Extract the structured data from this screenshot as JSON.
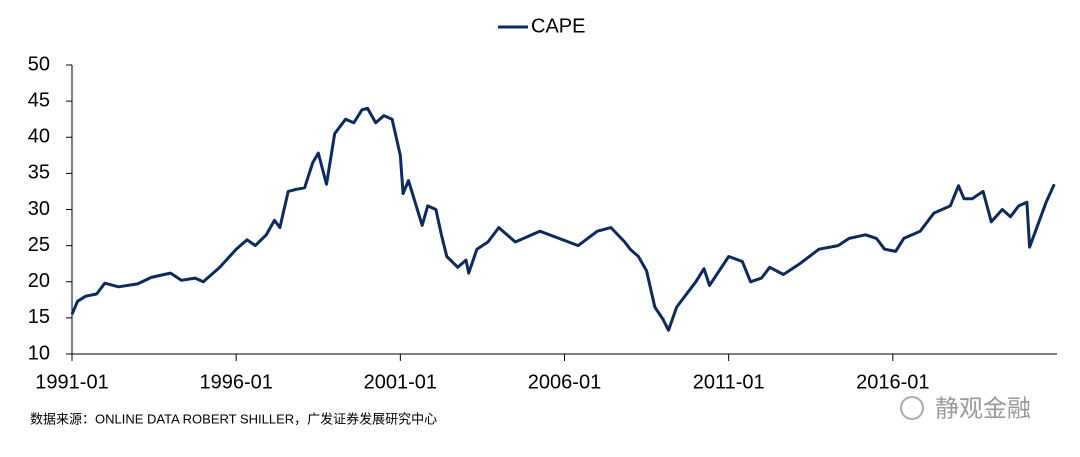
{
  "chart_data": {
    "type": "line",
    "series": [
      {
        "name": "CAPE",
        "color": "#0d2a5e",
        "x": [
          "1991-01",
          "1991-03",
          "1991-06",
          "1991-10",
          "1992-01",
          "1992-06",
          "1993-01",
          "1993-06",
          "1994-01",
          "1994-05",
          "1994-10",
          "1995-01",
          "1995-07",
          "1996-01",
          "1996-05",
          "1996-08",
          "1996-12",
          "1997-03",
          "1997-05",
          "1997-08",
          "1997-11",
          "1998-02",
          "1998-05",
          "1998-07",
          "1998-10",
          "1999-01",
          "1999-05",
          "1999-08",
          "1999-11",
          "2000-01",
          "2000-04",
          "2000-07",
          "2000-10",
          "2001-01",
          "2001-02",
          "2001-04",
          "2001-09",
          "2001-11",
          "2002-02",
          "2002-04",
          "2002-06",
          "2002-10",
          "2003-01",
          "2003-02",
          "2003-05",
          "2003-09",
          "2004-01",
          "2004-07",
          "2005-04",
          "2005-11",
          "2006-06",
          "2007-01",
          "2007-06",
          "2007-11",
          "2008-01",
          "2008-04",
          "2008-07",
          "2008-10",
          "2009-01",
          "2009-03",
          "2009-06",
          "2010-01",
          "2010-04",
          "2010-06",
          "2011-01",
          "2011-06",
          "2011-09",
          "2012-01",
          "2012-04",
          "2012-09",
          "2013-03",
          "2013-10",
          "2014-05",
          "2014-09",
          "2015-03",
          "2015-07",
          "2015-10",
          "2016-02",
          "2016-05",
          "2016-11",
          "2017-04",
          "2017-10",
          "2018-01",
          "2018-03",
          "2018-06",
          "2018-10",
          "2019-01",
          "2019-05",
          "2019-08",
          "2019-11",
          "2020-02",
          "2020-03",
          "2020-09",
          "2020-12"
        ],
        "values": [
          15.5,
          17.3,
          18.0,
          18.3,
          19.8,
          19.3,
          19.7,
          20.6,
          21.2,
          20.2,
          20.5,
          20.0,
          22.0,
          24.5,
          25.8,
          25.0,
          26.5,
          28.5,
          27.5,
          32.5,
          32.8,
          33.0,
          36.5,
          37.8,
          33.5,
          40.5,
          42.5,
          42.0,
          43.8,
          44.0,
          42.0,
          43.0,
          42.5,
          37.5,
          32.2,
          34.0,
          27.8,
          30.5,
          30.0,
          26.5,
          23.5,
          22.0,
          23.0,
          21.2,
          24.5,
          25.5,
          27.5,
          25.5,
          27.0,
          26.0,
          25.0,
          27.0,
          27.5,
          25.5,
          24.5,
          23.5,
          21.5,
          16.5,
          14.8,
          13.3,
          16.5,
          20.0,
          21.8,
          19.5,
          23.5,
          22.8,
          20.0,
          20.5,
          22.0,
          21.0,
          22.5,
          24.5,
          25.0,
          26.0,
          26.5,
          26.0,
          24.5,
          24.2,
          26.0,
          27.0,
          29.5,
          30.5,
          33.3,
          31.5,
          31.5,
          32.5,
          28.3,
          30.0,
          29.0,
          30.5,
          31.0,
          24.8,
          31.0,
          33.5
        ]
      }
    ],
    "xlim": [
      "1991-01",
      "2021-01"
    ],
    "xticks": [
      "1991-01",
      "1996-01",
      "2001-01",
      "2006-01",
      "2011-01",
      "2016-01"
    ],
    "ylim": [
      10,
      50
    ],
    "yticks": [
      10,
      15,
      20,
      25,
      30,
      35,
      40,
      45,
      50
    ],
    "legend": "top",
    "grid": false,
    "source": "数据来源：ONLINE DATA ROBERT SHILLER，广发证券发展研究中心",
    "watermark": "静观金融"
  }
}
